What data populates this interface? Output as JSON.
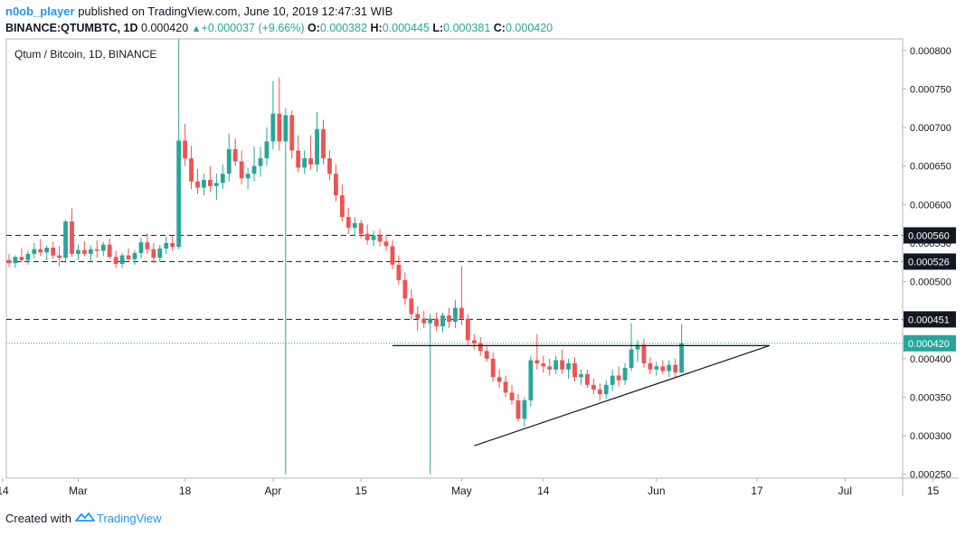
{
  "header": {
    "username": "n0ob_player",
    "published_text": " published on TradingView.com, June 10, 2019 12:47:31 WIB",
    "symbol": "BINANCE:QTUMBTC, 1D",
    "last": "0.000420",
    "change": "+0.000037 (+9.66%)",
    "o_label": "O:",
    "o_value": "0.000382",
    "h_label": "H:",
    "h_value": "0.000445",
    "l_label": "L:",
    "l_value": "0.000381",
    "c_label": "C:",
    "c_value": "0.000420"
  },
  "footer": {
    "created_with": "Created with",
    "brand": "TradingView"
  },
  "chart_data": {
    "type": "candlestick",
    "title": "Qtum / Bitcoin, 1D, BINANCE",
    "ylim": [
      0.000245,
      0.000815
    ],
    "y_ticks": [
      "0.000800",
      "0.000750",
      "0.000700",
      "0.000650",
      "0.000600",
      "0.000550",
      "0.000500",
      "0.000450",
      "0.000400",
      "0.000350",
      "0.000300",
      "0.000250"
    ],
    "x_ticks": [
      {
        "label": "14",
        "day": -1
      },
      {
        "label": "Mar",
        "day": 11
      },
      {
        "label": "18",
        "day": 28
      },
      {
        "label": "Apr",
        "day": 42
      },
      {
        "label": "15",
        "day": 56
      },
      {
        "label": "May",
        "day": 72
      },
      {
        "label": "14",
        "day": 85
      },
      {
        "label": "Jun",
        "day": 103
      },
      {
        "label": "17",
        "day": 119
      },
      {
        "label": "Jul",
        "day": 133
      },
      {
        "label": "15",
        "day": 147
      }
    ],
    "price_labels": [
      {
        "text": "0.000560",
        "value": 0.00056,
        "style": "dark"
      },
      {
        "text": "0.000526",
        "value": 0.000526,
        "style": "dark"
      },
      {
        "text": "0.000451",
        "value": 0.000451,
        "style": "dark"
      },
      {
        "text": "0.000420",
        "value": 0.00042,
        "style": "green"
      }
    ],
    "horizontal_lines": [
      0.00056,
      0.000526,
      0.000451
    ],
    "last_price": 0.00042,
    "trendlines": [
      {
        "from": [
          61,
          0.000417
        ],
        "to": [
          121,
          0.000417
        ]
      },
      {
        "from": [
          74,
          0.000287
        ],
        "to": [
          121,
          0.000417
        ]
      }
    ],
    "candles": [
      {
        "d": 0,
        "o": 0.000528,
        "h": 0.000536,
        "l": 0.000519,
        "c": 0.000524
      },
      {
        "d": 1,
        "o": 0.000524,
        "h": 0.000534,
        "l": 0.000518,
        "c": 0.000532
      },
      {
        "d": 2,
        "o": 0.000532,
        "h": 0.000543,
        "l": 0.000525,
        "c": 0.000528
      },
      {
        "d": 3,
        "o": 0.000528,
        "h": 0.00054,
        "l": 0.000522,
        "c": 0.000536
      },
      {
        "d": 4,
        "o": 0.000536,
        "h": 0.00055,
        "l": 0.00053,
        "c": 0.000542
      },
      {
        "d": 5,
        "o": 0.000542,
        "h": 0.000555,
        "l": 0.000533,
        "c": 0.000538
      },
      {
        "d": 6,
        "o": 0.000538,
        "h": 0.000547,
        "l": 0.000528,
        "c": 0.000544
      },
      {
        "d": 7,
        "o": 0.000544,
        "h": 0.000552,
        "l": 0.00053,
        "c": 0.000534
      },
      {
        "d": 8,
        "o": 0.000534,
        "h": 0.000546,
        "l": 0.00052,
        "c": 0.000531
      },
      {
        "d": 9,
        "o": 0.000531,
        "h": 0.00058,
        "l": 0.000524,
        "c": 0.000578
      },
      {
        "d": 10,
        "o": 0.000578,
        "h": 0.000595,
        "l": 0.000532,
        "c": 0.000536
      },
      {
        "d": 11,
        "o": 0.000536,
        "h": 0.000548,
        "l": 0.000528,
        "c": 0.000541
      },
      {
        "d": 12,
        "o": 0.000541,
        "h": 0.000552,
        "l": 0.000533,
        "c": 0.000536
      },
      {
        "d": 13,
        "o": 0.000536,
        "h": 0.000547,
        "l": 0.000527,
        "c": 0.000542
      },
      {
        "d": 14,
        "o": 0.000542,
        "h": 0.000554,
        "l": 0.000531,
        "c": 0.00054
      },
      {
        "d": 15,
        "o": 0.00054,
        "h": 0.000552,
        "l": 0.000533,
        "c": 0.000548
      },
      {
        "d": 16,
        "o": 0.000548,
        "h": 0.000556,
        "l": 0.00053,
        "c": 0.000532
      },
      {
        "d": 17,
        "o": 0.000532,
        "h": 0.00054,
        "l": 0.000518,
        "c": 0.000523
      },
      {
        "d": 18,
        "o": 0.000523,
        "h": 0.000537,
        "l": 0.000518,
        "c": 0.000534
      },
      {
        "d": 19,
        "o": 0.000534,
        "h": 0.000543,
        "l": 0.000527,
        "c": 0.000529
      },
      {
        "d": 20,
        "o": 0.000529,
        "h": 0.000541,
        "l": 0.000522,
        "c": 0.000537
      },
      {
        "d": 21,
        "o": 0.000537,
        "h": 0.000557,
        "l": 0.00053,
        "c": 0.000551
      },
      {
        "d": 22,
        "o": 0.000551,
        "h": 0.000563,
        "l": 0.000536,
        "c": 0.000542
      },
      {
        "d": 23,
        "o": 0.000542,
        "h": 0.00055,
        "l": 0.000524,
        "c": 0.000531
      },
      {
        "d": 24,
        "o": 0.000531,
        "h": 0.000548,
        "l": 0.000525,
        "c": 0.000543
      },
      {
        "d": 25,
        "o": 0.000543,
        "h": 0.000558,
        "l": 0.000536,
        "c": 0.00055
      },
      {
        "d": 26,
        "o": 0.00055,
        "h": 0.00056,
        "l": 0.00054,
        "c": 0.000545
      },
      {
        "d": 27,
        "o": 0.000545,
        "h": 0.000815,
        "l": 0.000542,
        "c": 0.000683
      },
      {
        "d": 28,
        "o": 0.000683,
        "h": 0.000705,
        "l": 0.00065,
        "c": 0.00066
      },
      {
        "d": 29,
        "o": 0.00066,
        "h": 0.000676,
        "l": 0.00062,
        "c": 0.00063
      },
      {
        "d": 30,
        "o": 0.00063,
        "h": 0.000646,
        "l": 0.000614,
        "c": 0.000622
      },
      {
        "d": 31,
        "o": 0.000622,
        "h": 0.00064,
        "l": 0.000612,
        "c": 0.000632
      },
      {
        "d": 32,
        "o": 0.000632,
        "h": 0.00065,
        "l": 0.000616,
        "c": 0.000624
      },
      {
        "d": 33,
        "o": 0.000624,
        "h": 0.00064,
        "l": 0.000606,
        "c": 0.000628
      },
      {
        "d": 34,
        "o": 0.000628,
        "h": 0.000652,
        "l": 0.00062,
        "c": 0.00064
      },
      {
        "d": 35,
        "o": 0.00064,
        "h": 0.000692,
        "l": 0.00063,
        "c": 0.000672
      },
      {
        "d": 36,
        "o": 0.000672,
        "h": 0.000686,
        "l": 0.00065,
        "c": 0.000656
      },
      {
        "d": 37,
        "o": 0.000656,
        "h": 0.00067,
        "l": 0.000626,
        "c": 0.000634
      },
      {
        "d": 38,
        "o": 0.000634,
        "h": 0.000648,
        "l": 0.00062,
        "c": 0.00064
      },
      {
        "d": 39,
        "o": 0.00064,
        "h": 0.000675,
        "l": 0.00063,
        "c": 0.00065
      },
      {
        "d": 40,
        "o": 0.00065,
        "h": 0.000675,
        "l": 0.000636,
        "c": 0.00066
      },
      {
        "d": 41,
        "o": 0.00066,
        "h": 0.0007,
        "l": 0.00065,
        "c": 0.000682
      },
      {
        "d": 42,
        "o": 0.000682,
        "h": 0.00076,
        "l": 0.000672,
        "c": 0.000718
      },
      {
        "d": 43,
        "o": 0.000718,
        "h": 0.000765,
        "l": 0.00067,
        "c": 0.000682
      },
      {
        "d": 44,
        "o": 0.000682,
        "h": 0.000725,
        "l": 0.00025,
        "c": 0.000716
      },
      {
        "d": 45,
        "o": 0.000716,
        "h": 0.000722,
        "l": 0.00066,
        "c": 0.00067
      },
      {
        "d": 46,
        "o": 0.00067,
        "h": 0.00069,
        "l": 0.000642,
        "c": 0.000648
      },
      {
        "d": 47,
        "o": 0.000648,
        "h": 0.00067,
        "l": 0.00064,
        "c": 0.00066
      },
      {
        "d": 48,
        "o": 0.00066,
        "h": 0.00069,
        "l": 0.000645,
        "c": 0.000652
      },
      {
        "d": 49,
        "o": 0.000652,
        "h": 0.00072,
        "l": 0.000642,
        "c": 0.000698
      },
      {
        "d": 50,
        "o": 0.000698,
        "h": 0.00071,
        "l": 0.000652,
        "c": 0.00066
      },
      {
        "d": 51,
        "o": 0.00066,
        "h": 0.00067,
        "l": 0.000632,
        "c": 0.00064
      },
      {
        "d": 52,
        "o": 0.00064,
        "h": 0.000652,
        "l": 0.000604,
        "c": 0.000612
      },
      {
        "d": 53,
        "o": 0.000612,
        "h": 0.000626,
        "l": 0.000578,
        "c": 0.000584
      },
      {
        "d": 54,
        "o": 0.000584,
        "h": 0.000596,
        "l": 0.000562,
        "c": 0.00057
      },
      {
        "d": 55,
        "o": 0.00057,
        "h": 0.000584,
        "l": 0.00056,
        "c": 0.000576
      },
      {
        "d": 56,
        "o": 0.000576,
        "h": 0.00058,
        "l": 0.000556,
        "c": 0.000562
      },
      {
        "d": 57,
        "o": 0.000562,
        "h": 0.000574,
        "l": 0.000548,
        "c": 0.000554
      },
      {
        "d": 58,
        "o": 0.000554,
        "h": 0.000566,
        "l": 0.000546,
        "c": 0.00056
      },
      {
        "d": 59,
        "o": 0.00056,
        "h": 0.000568,
        "l": 0.000546,
        "c": 0.000552
      },
      {
        "d": 60,
        "o": 0.000552,
        "h": 0.00056,
        "l": 0.00054,
        "c": 0.000546
      },
      {
        "d": 61,
        "o": 0.000546,
        "h": 0.000554,
        "l": 0.000516,
        "c": 0.000522
      },
      {
        "d": 62,
        "o": 0.000522,
        "h": 0.000534,
        "l": 0.000496,
        "c": 0.000502
      },
      {
        "d": 63,
        "o": 0.000502,
        "h": 0.000512,
        "l": 0.00047,
        "c": 0.000478
      },
      {
        "d": 64,
        "o": 0.000478,
        "h": 0.00049,
        "l": 0.00045,
        "c": 0.000458
      },
      {
        "d": 65,
        "o": 0.000458,
        "h": 0.000468,
        "l": 0.000436,
        "c": 0.000452
      },
      {
        "d": 66,
        "o": 0.000452,
        "h": 0.000462,
        "l": 0.00044,
        "c": 0.000446
      },
      {
        "d": 67,
        "o": 0.000446,
        "h": 0.000458,
        "l": 0.00025,
        "c": 0.000452
      },
      {
        "d": 68,
        "o": 0.000452,
        "h": 0.00046,
        "l": 0.000436,
        "c": 0.000442
      },
      {
        "d": 69,
        "o": 0.000442,
        "h": 0.00046,
        "l": 0.000434,
        "c": 0.000456
      },
      {
        "d": 70,
        "o": 0.000456,
        "h": 0.000466,
        "l": 0.00044,
        "c": 0.000448
      },
      {
        "d": 71,
        "o": 0.000448,
        "h": 0.000476,
        "l": 0.00044,
        "c": 0.000466
      },
      {
        "d": 72,
        "o": 0.000466,
        "h": 0.00052,
        "l": 0.000444,
        "c": 0.000452
      },
      {
        "d": 73,
        "o": 0.000452,
        "h": 0.000458,
        "l": 0.000418,
        "c": 0.000424
      },
      {
        "d": 74,
        "o": 0.000424,
        "h": 0.000432,
        "l": 0.000412,
        "c": 0.00042
      },
      {
        "d": 75,
        "o": 0.00042,
        "h": 0.000428,
        "l": 0.000404,
        "c": 0.00041
      },
      {
        "d": 76,
        "o": 0.00041,
        "h": 0.000416,
        "l": 0.000396,
        "c": 0.0004
      },
      {
        "d": 77,
        "o": 0.0004,
        "h": 0.000408,
        "l": 0.00037,
        "c": 0.000376
      },
      {
        "d": 78,
        "o": 0.000376,
        "h": 0.000386,
        "l": 0.000362,
        "c": 0.00037
      },
      {
        "d": 79,
        "o": 0.00037,
        "h": 0.000378,
        "l": 0.00035,
        "c": 0.000356
      },
      {
        "d": 80,
        "o": 0.000356,
        "h": 0.000366,
        "l": 0.00034,
        "c": 0.000346
      },
      {
        "d": 81,
        "o": 0.000346,
        "h": 0.000354,
        "l": 0.000318,
        "c": 0.000322
      },
      {
        "d": 82,
        "o": 0.000322,
        "h": 0.00035,
        "l": 0.000312,
        "c": 0.000346
      },
      {
        "d": 83,
        "o": 0.000346,
        "h": 0.000404,
        "l": 0.000338,
        "c": 0.000398
      },
      {
        "d": 84,
        "o": 0.000398,
        "h": 0.000432,
        "l": 0.000386,
        "c": 0.000394
      },
      {
        "d": 85,
        "o": 0.000394,
        "h": 0.000404,
        "l": 0.000382,
        "c": 0.00039
      },
      {
        "d": 86,
        "o": 0.00039,
        "h": 0.0004,
        "l": 0.000378,
        "c": 0.000386
      },
      {
        "d": 87,
        "o": 0.000386,
        "h": 0.000404,
        "l": 0.00038,
        "c": 0.000398
      },
      {
        "d": 88,
        "o": 0.000398,
        "h": 0.000412,
        "l": 0.00038,
        "c": 0.000386
      },
      {
        "d": 89,
        "o": 0.000386,
        "h": 0.0004,
        "l": 0.000374,
        "c": 0.000394
      },
      {
        "d": 90,
        "o": 0.000394,
        "h": 0.000402,
        "l": 0.00037,
        "c": 0.000376
      },
      {
        "d": 91,
        "o": 0.000376,
        "h": 0.000386,
        "l": 0.000366,
        "c": 0.00038
      },
      {
        "d": 92,
        "o": 0.00038,
        "h": 0.000386,
        "l": 0.000362,
        "c": 0.000366
      },
      {
        "d": 93,
        "o": 0.000366,
        "h": 0.000374,
        "l": 0.000354,
        "c": 0.00036
      },
      {
        "d": 94,
        "o": 0.00036,
        "h": 0.000368,
        "l": 0.000346,
        "c": 0.000354
      },
      {
        "d": 95,
        "o": 0.000354,
        "h": 0.000372,
        "l": 0.000348,
        "c": 0.000366
      },
      {
        "d": 96,
        "o": 0.000366,
        "h": 0.000386,
        "l": 0.000358,
        "c": 0.000378
      },
      {
        "d": 97,
        "o": 0.000378,
        "h": 0.00039,
        "l": 0.000364,
        "c": 0.000372
      },
      {
        "d": 98,
        "o": 0.000372,
        "h": 0.000394,
        "l": 0.000366,
        "c": 0.000388
      },
      {
        "d": 99,
        "o": 0.000388,
        "h": 0.000446,
        "l": 0.000384,
        "c": 0.000412
      },
      {
        "d": 100,
        "o": 0.000412,
        "h": 0.000424,
        "l": 0.000396,
        "c": 0.000418
      },
      {
        "d": 101,
        "o": 0.000418,
        "h": 0.000426,
        "l": 0.000388,
        "c": 0.000394
      },
      {
        "d": 102,
        "o": 0.000394,
        "h": 0.000402,
        "l": 0.00038,
        "c": 0.000386
      },
      {
        "d": 103,
        "o": 0.000386,
        "h": 0.000396,
        "l": 0.000378,
        "c": 0.00039
      },
      {
        "d": 104,
        "o": 0.00039,
        "h": 0.000398,
        "l": 0.00038,
        "c": 0.000384
      },
      {
        "d": 105,
        "o": 0.000384,
        "h": 0.000398,
        "l": 0.000376,
        "c": 0.000392
      },
      {
        "d": 106,
        "o": 0.000392,
        "h": 0.0004,
        "l": 0.000376,
        "c": 0.000382
      },
      {
        "d": 107,
        "o": 0.000382,
        "h": 0.000445,
        "l": 0.000381,
        "c": 0.00042
      }
    ]
  }
}
